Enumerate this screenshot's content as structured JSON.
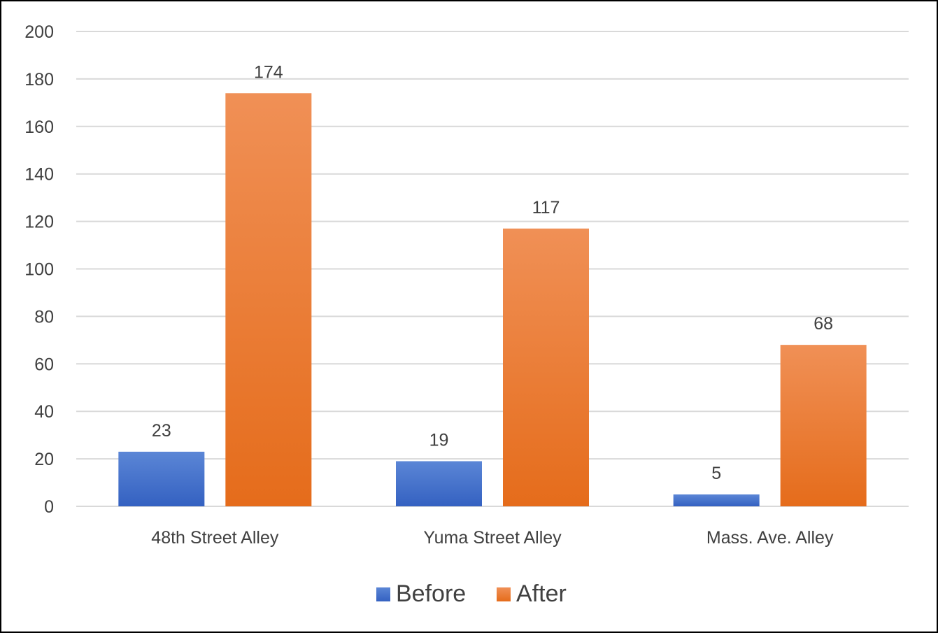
{
  "chart_data": {
    "type": "bar",
    "categories": [
      "48th Street Alley",
      "Yuma Street Alley",
      "Mass. Ave. Alley"
    ],
    "series": [
      {
        "name": "Before",
        "values": [
          23,
          19,
          5
        ]
      },
      {
        "name": "After",
        "values": [
          174,
          117,
          68
        ]
      }
    ],
    "title": "",
    "xlabel": "",
    "ylabel": "",
    "ylim": [
      0,
      200
    ],
    "yticks": [
      0,
      20,
      40,
      60,
      80,
      100,
      120,
      140,
      160,
      180,
      200
    ],
    "grid": true,
    "legend": {
      "position": "bottom",
      "entries": [
        "Before",
        "After"
      ]
    },
    "data_labels": true,
    "colors": {
      "Before_top": "#5b86d6",
      "Before_bottom": "#3461c1",
      "After_top": "#f09056",
      "After_bottom": "#e56c1b",
      "grid": "#d9d9d9",
      "text": "#404040"
    }
  }
}
